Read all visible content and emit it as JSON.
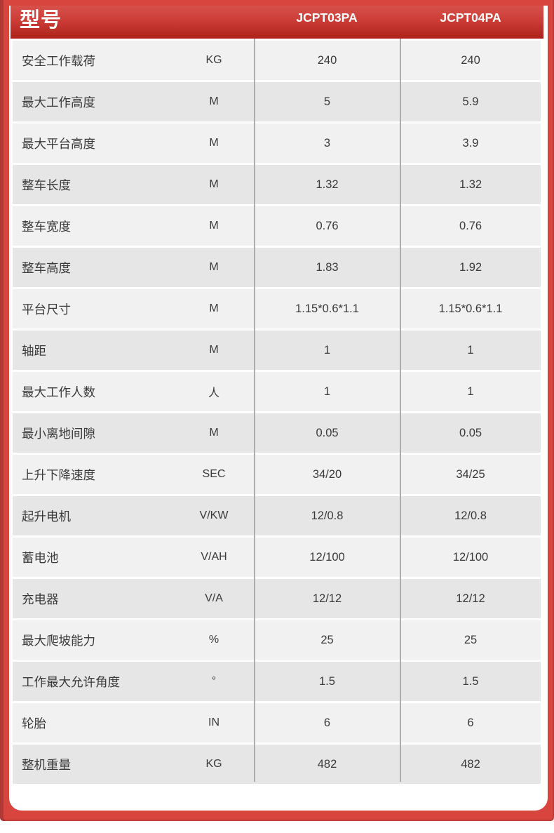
{
  "header": {
    "model_label": "型号",
    "columns": [
      "JCPT03PA",
      "JCPT04PA"
    ]
  },
  "rows": [
    {
      "label": "安全工作载荷",
      "unit": "KG",
      "values": [
        "240",
        "240"
      ]
    },
    {
      "label": "最大工作高度",
      "unit": "M",
      "values": [
        "5",
        "5.9"
      ]
    },
    {
      "label": "最大平台高度",
      "unit": "M",
      "values": [
        "3",
        "3.9"
      ]
    },
    {
      "label": "整车长度",
      "unit": "M",
      "values": [
        "1.32",
        "1.32"
      ]
    },
    {
      "label": "整车宽度",
      "unit": "M",
      "values": [
        "0.76",
        "0.76"
      ]
    },
    {
      "label": "整车高度",
      "unit": "M",
      "values": [
        "1.83",
        "1.92"
      ]
    },
    {
      "label": "平台尺寸",
      "unit": "M",
      "values": [
        "1.15*0.6*1.1",
        "1.15*0.6*1.1"
      ]
    },
    {
      "label": "轴距",
      "unit": "M",
      "values": [
        "1",
        "1"
      ]
    },
    {
      "label": "最大工作人数",
      "unit": "人",
      "values": [
        "1",
        "1"
      ]
    },
    {
      "label": "最小离地间隙",
      "unit": "M",
      "values": [
        "0.05",
        "0.05"
      ]
    },
    {
      "label": "上升下降速度",
      "unit": "SEC",
      "values": [
        "34/20",
        "34/25"
      ]
    },
    {
      "label": "起升电机",
      "unit": "V/KW",
      "values": [
        "12/0.8",
        "12/0.8"
      ]
    },
    {
      "label": "蓄电池",
      "unit": "V/AH",
      "values": [
        "12/100",
        "12/100"
      ]
    },
    {
      "label": "充电器",
      "unit": "V/A",
      "values": [
        "12/12",
        "12/12"
      ]
    },
    {
      "label": "最大爬坡能力",
      "unit": "%",
      "values": [
        "25",
        "25"
      ]
    },
    {
      "label": "工作最大允许角度",
      "unit": "°",
      "values": [
        "1.5",
        "1.5"
      ]
    },
    {
      "label": "轮胎",
      "unit": "IN",
      "values": [
        "6",
        "6"
      ]
    },
    {
      "label": "整机重量",
      "unit": "KG",
      "values": [
        "482",
        "482"
      ]
    }
  ],
  "colors": {
    "frame_red": "#d8453f",
    "header_gradient_top": "#d7514b",
    "header_gradient_bottom": "#ad211b",
    "row_light": "#f2f1f1",
    "row_dark": "#e7e6e6",
    "divider_gray": "#adadad",
    "text": "#3a3a3a"
  }
}
